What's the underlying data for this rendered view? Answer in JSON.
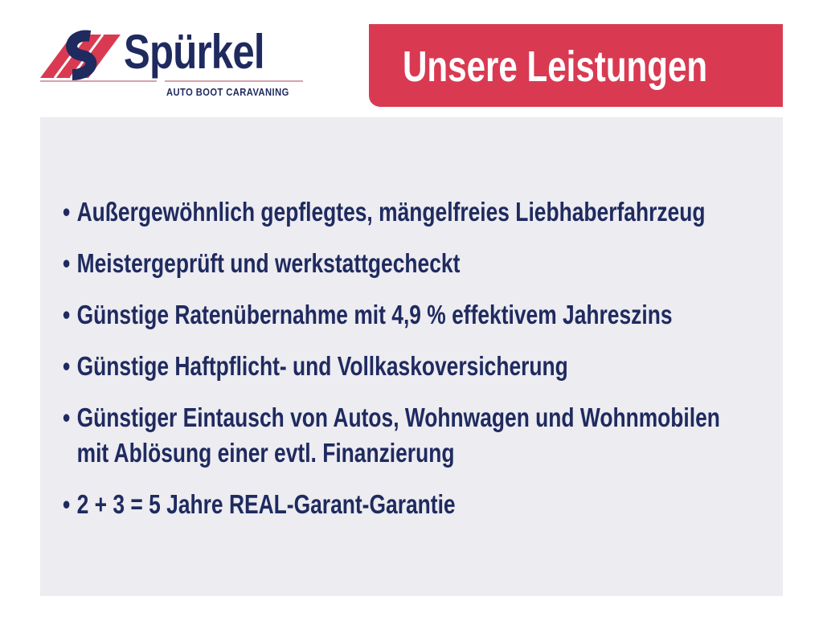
{
  "logo": {
    "name": "Spürkel",
    "tagline": "AUTO BOOT CARAVANING",
    "colors": {
      "navy": "#1f2a5f",
      "red": "#d93a52"
    }
  },
  "banner": {
    "title": "Unsere Leistungen"
  },
  "services": [
    {
      "lines": [
        "Außergewöhnlich gepflegtes, mängelfreies Liebhaberfahrzeug"
      ]
    },
    {
      "lines": [
        "Meistergeprüft und werkstattgecheckt"
      ]
    },
    {
      "lines": [
        "Günstige Ratenübernahme mit 4,9 % effektivem Jahreszins"
      ]
    },
    {
      "lines": [
        "Günstige Haftpflicht- und Vollkaskoversicherung"
      ]
    },
    {
      "lines": [
        "Günstiger Eintausch von Autos, Wohnwagen und Wohnmobilen",
        "mit Ablösung einer evtl. Finanzierung"
      ]
    },
    {
      "lines": [
        "2 + 3 = 5 Jahre REAL-Garant-Garantie"
      ]
    }
  ],
  "bullet": "•"
}
